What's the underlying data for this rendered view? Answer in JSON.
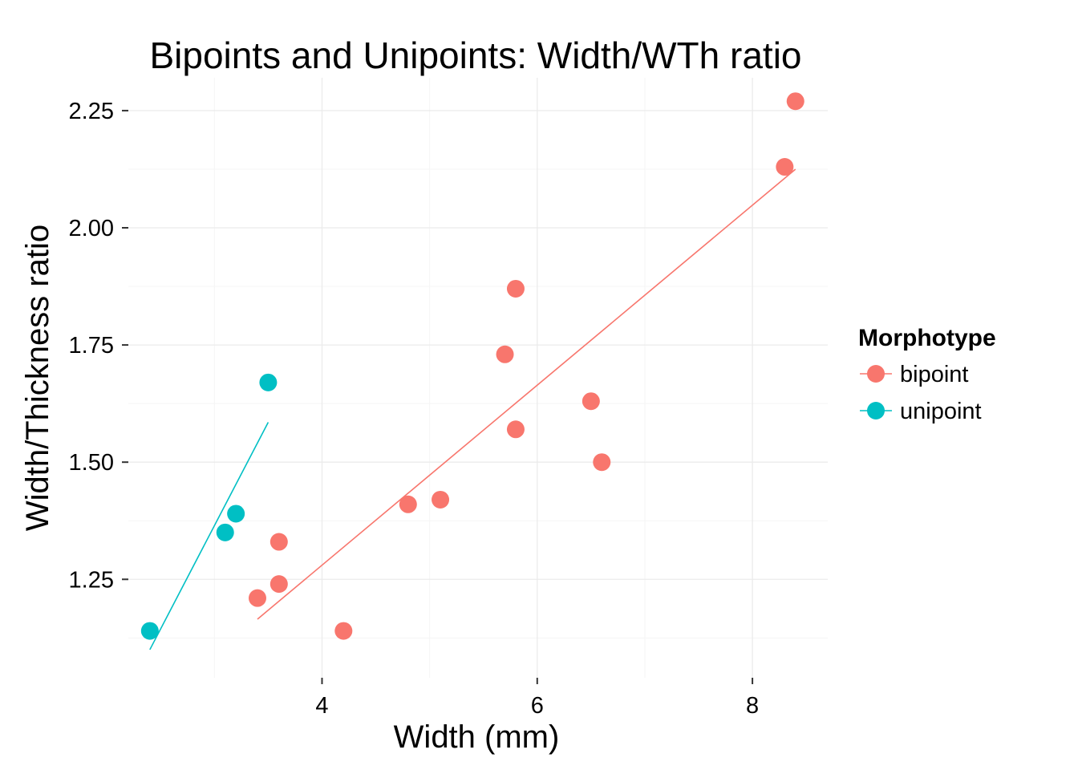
{
  "chart_data": {
    "type": "scatter",
    "title": "Bipoints and Unipoints: Width/WTh ratio",
    "xlabel": "Width (mm)",
    "ylabel": "Width/Thickness ratio",
    "xlim": [
      2.2,
      8.7
    ],
    "ylim": [
      1.04,
      2.32
    ],
    "x_ticks": [
      4,
      6,
      8
    ],
    "x_tick_labels": [
      "4",
      "6",
      "8"
    ],
    "y_ticks": [
      1.25,
      1.5,
      1.75,
      2.0,
      2.25
    ],
    "y_tick_labels": [
      "1.25",
      "1.50",
      "1.75",
      "2.00",
      "2.25"
    ],
    "grid": true,
    "legend": {
      "title": "Morphotype",
      "position": "right"
    },
    "series": [
      {
        "name": "bipoint",
        "color": "#F8766D",
        "points": [
          {
            "x": 3.4,
            "y": 1.21
          },
          {
            "x": 3.6,
            "y": 1.24
          },
          {
            "x": 3.6,
            "y": 1.33
          },
          {
            "x": 4.2,
            "y": 1.14
          },
          {
            "x": 4.8,
            "y": 1.41
          },
          {
            "x": 5.1,
            "y": 1.42
          },
          {
            "x": 5.7,
            "y": 1.73
          },
          {
            "x": 5.8,
            "y": 1.87
          },
          {
            "x": 5.8,
            "y": 1.57
          },
          {
            "x": 6.5,
            "y": 1.63
          },
          {
            "x": 6.6,
            "y": 1.5
          },
          {
            "x": 8.3,
            "y": 2.13
          },
          {
            "x": 8.4,
            "y": 2.27
          }
        ],
        "fit_line": {
          "x": [
            3.4,
            8.4
          ],
          "y": [
            1.165,
            2.125
          ]
        }
      },
      {
        "name": "unipoint",
        "color": "#00BFC4",
        "points": [
          {
            "x": 2.4,
            "y": 1.14
          },
          {
            "x": 3.1,
            "y": 1.35
          },
          {
            "x": 3.2,
            "y": 1.39
          },
          {
            "x": 3.5,
            "y": 1.67
          }
        ],
        "fit_line": {
          "x": [
            2.4,
            3.5
          ],
          "y": [
            1.1,
            1.585
          ]
        }
      }
    ]
  }
}
